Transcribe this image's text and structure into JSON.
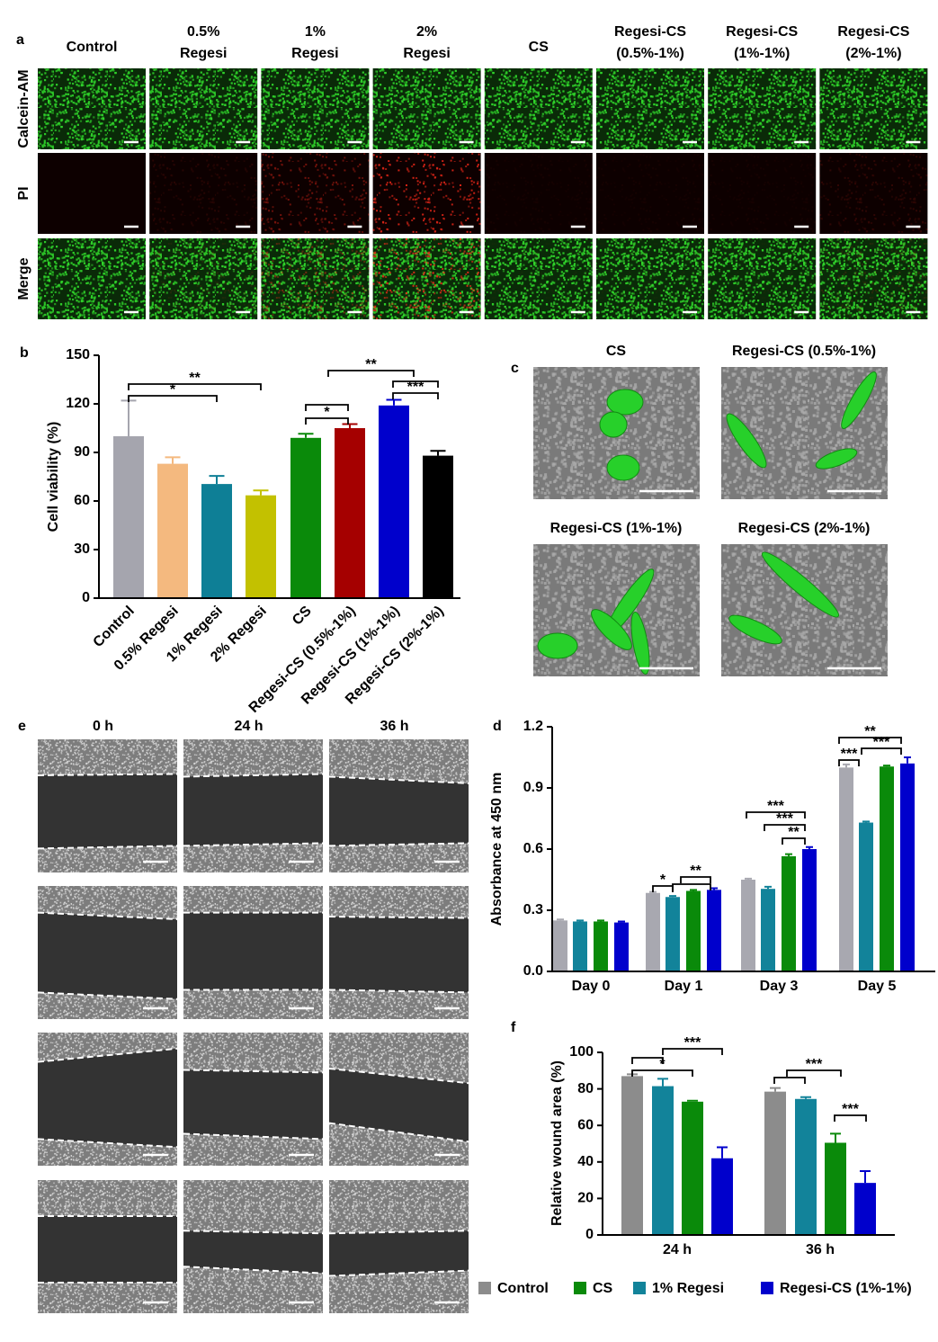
{
  "panel_a": {
    "label": "a",
    "columns": [
      [
        "Control"
      ],
      [
        "0.5%",
        "Regesi"
      ],
      [
        "1%",
        "Regesi"
      ],
      [
        "2%",
        "Regesi"
      ],
      [
        "CS"
      ],
      [
        "Regesi-CS",
        "(0.5%-1%)"
      ],
      [
        "Regesi-CS",
        "(1%-1%)"
      ],
      [
        "Regesi-CS",
        "(2%-1%)"
      ]
    ],
    "rows": [
      "Calcein-AM",
      "PI",
      "Merge"
    ]
  },
  "panel_c": {
    "label": "c",
    "titles": [
      "CS",
      "Regesi-CS (0.5%-1%)",
      "Regesi-CS (1%-1%)",
      "Regesi-CS (2%-1%)"
    ]
  },
  "panel_e": {
    "label": "e",
    "columns": [
      "0 h",
      "24 h",
      "36 h"
    ]
  },
  "chart_data": [
    {
      "type": "bar",
      "label": "b",
      "y_label": "Cell viability (%)",
      "categories": [
        "Control",
        "0.5% Regesi",
        "1% Regesi",
        "2% Regesi",
        "CS",
        "Regesi-CS (0.5%-1%)",
        "Regesi-CS (1%-1%)",
        "Regesi-CS (2%-1%)"
      ],
      "values": [
        100,
        83,
        70.5,
        63.5,
        99,
        105,
        119,
        88
      ],
      "errors": [
        22,
        4,
        5,
        3,
        2.5,
        2.5,
        3.5,
        3
      ],
      "colors": [
        "#a5a5ae",
        "#f4b97f",
        "#0e7f96",
        "#c3c100",
        "#0a8a0a",
        "#a50000",
        "#0000cc",
        "#000000"
      ],
      "ylim": [
        0,
        150
      ],
      "yticks": [
        0,
        30,
        60,
        90,
        120,
        150
      ],
      "annotations": [
        "**",
        "*",
        "**",
        "*",
        "***"
      ]
    },
    {
      "type": "bar",
      "label": "d",
      "y_label": "Absorbance at 450 nm",
      "categories": [
        "Day 0",
        "Day 1",
        "Day 3",
        "Day 5"
      ],
      "series": [
        {
          "color": "#a8a8b0",
          "values": [
            0.25,
            0.385,
            0.45,
            1.0
          ],
          "errors": [
            0.005,
            0.005,
            0.005,
            0.015
          ]
        },
        {
          "color": "#12839a",
          "values": [
            0.245,
            0.365,
            0.405,
            0.73
          ],
          "errors": [
            0.005,
            0.005,
            0.01,
            0.005
          ]
        },
        {
          "color": "#0a8a0a",
          "values": [
            0.245,
            0.395,
            0.565,
            1.005
          ],
          "errors": [
            0.005,
            0.005,
            0.01,
            0.005
          ]
        },
        {
          "color": "#0000cc",
          "values": [
            0.24,
            0.4,
            0.6,
            1.02
          ],
          "errors": [
            0.005,
            0.008,
            0.01,
            0.03
          ]
        }
      ],
      "ylim": [
        0,
        1.2
      ],
      "yticks": [
        {
          "value": 0,
          "label": "0.0"
        },
        0.3,
        0.6,
        0.9,
        1.2
      ],
      "annotations": [
        "*",
        "**",
        "***",
        "***",
        "**",
        "***",
        "**",
        "***"
      ]
    },
    {
      "type": "bar",
      "label": "f",
      "y_label": "Relative wound area (%)",
      "categories": [
        "24 h",
        "36 h"
      ],
      "series": [
        {
          "name": "Control",
          "color": "#8c8c8c",
          "values": [
            87,
            78.5
          ],
          "errors": [
            1,
            2
          ]
        },
        {
          "name": "CS",
          "color": "#0a8a0a",
          "values": [
            73,
            50.5
          ],
          "errors": [
            0.5,
            5
          ]
        },
        {
          "name": "1% Regesi",
          "color": "#12839a",
          "values": [
            81.5,
            74.5
          ],
          "errors": [
            4,
            1
          ]
        },
        {
          "name": "Regesi-CS (1%-1%)",
          "color": "#0000cc",
          "values": [
            42,
            28.5
          ],
          "errors": [
            6,
            6.5
          ]
        }
      ],
      "ylim": [
        0,
        100
      ],
      "yticks": [
        0,
        20,
        40,
        60,
        80,
        100
      ],
      "annotations": [
        "***",
        "*",
        "***",
        "***"
      ]
    }
  ]
}
